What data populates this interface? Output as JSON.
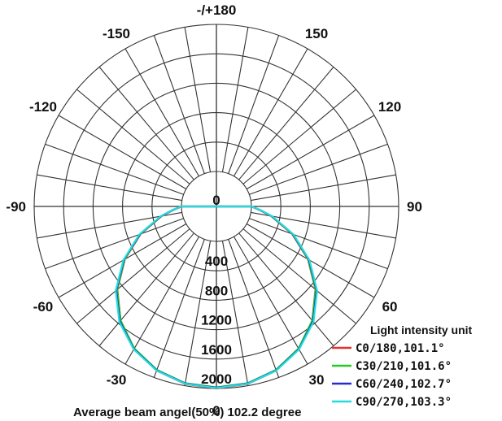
{
  "chart_data": {
    "type": "polar",
    "angle_labels": [
      {
        "angle": 180,
        "text": "-/+180"
      },
      {
        "angle": -150,
        "text": "-150"
      },
      {
        "angle": 150,
        "text": "150"
      },
      {
        "angle": -120,
        "text": "-120"
      },
      {
        "angle": 120,
        "text": "120"
      },
      {
        "angle": -90,
        "text": "-90"
      },
      {
        "angle": 90,
        "text": "90"
      },
      {
        "angle": -60,
        "text": "-60"
      },
      {
        "angle": 60,
        "text": "60"
      },
      {
        "angle": -30,
        "text": "-30"
      },
      {
        "angle": 30,
        "text": "30"
      },
      {
        "angle": 0,
        "text": "0"
      }
    ],
    "radial_ticks": [
      {
        "value": 0,
        "text": "0"
      },
      {
        "value": 400,
        "text": "400"
      },
      {
        "value": 800,
        "text": "800"
      },
      {
        "value": 1200,
        "text": "1200"
      },
      {
        "value": 1600,
        "text": "1600"
      },
      {
        "value": 2000,
        "text": "2000"
      }
    ],
    "rmax": 2000,
    "angle_grid_step": 10,
    "legend": {
      "title": "Light intensity unit",
      "position": "bottom-right"
    },
    "series": [
      {
        "name": "C0/180,101.1°",
        "color": "#e53030",
        "peak": 2000,
        "k": 1.0,
        "angles": [
          0,
          10,
          20,
          30,
          40,
          50,
          60,
          70,
          80,
          85,
          90
        ],
        "values": [
          2000,
          1975,
          1900,
          1760,
          1550,
          1280,
          960,
          620,
          280,
          120,
          0
        ]
      },
      {
        "name": "C30/210,101.6°",
        "color": "#22cc22",
        "peak": 1985,
        "k": 1.01,
        "angles": [
          0,
          10,
          20,
          30,
          40,
          50,
          60,
          70,
          80,
          85,
          90
        ],
        "values": [
          1985,
          1965,
          1890,
          1755,
          1550,
          1285,
          965,
          625,
          285,
          125,
          0
        ]
      },
      {
        "name": "C60/240,102.7°",
        "color": "#2a2ad0",
        "peak": 1990,
        "k": 1.02,
        "angles": [
          0,
          10,
          20,
          30,
          40,
          50,
          60,
          70,
          80,
          85,
          90
        ],
        "values": [
          1990,
          1968,
          1895,
          1765,
          1565,
          1300,
          975,
          630,
          290,
          130,
          0
        ]
      },
      {
        "name": "C90/270,103.3°",
        "color": "#22dddd",
        "peak": 1995,
        "k": 1.03,
        "angles": [
          0,
          10,
          20,
          30,
          40,
          50,
          60,
          70,
          80,
          85,
          90
        ],
        "values": [
          1995,
          1972,
          1900,
          1770,
          1575,
          1310,
          985,
          640,
          295,
          135,
          0
        ]
      }
    ],
    "footer": "Average beam angel(50%) 102.2 degree"
  }
}
